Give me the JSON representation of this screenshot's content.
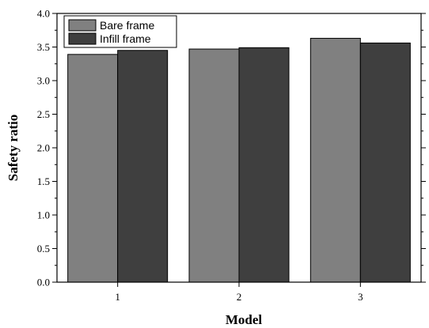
{
  "chart_data": {
    "type": "bar",
    "categories": [
      "1",
      "2",
      "3"
    ],
    "series": [
      {
        "name": "Bare frame",
        "values": [
          3.39,
          3.47,
          3.63
        ],
        "color": "#808080"
      },
      {
        "name": "Infill frame",
        "values": [
          3.45,
          3.49,
          3.56
        ],
        "color": "#3f3f3f"
      }
    ],
    "xlabel": "Model",
    "ylabel": "Safety ratio",
    "ylim": [
      0.0,
      4.0
    ],
    "yticks": [
      "0.0",
      "0.5",
      "1.0",
      "1.5",
      "2.0",
      "2.5",
      "3.0",
      "3.5",
      "4.0"
    ],
    "legend_position": "top-left",
    "grid": false
  }
}
